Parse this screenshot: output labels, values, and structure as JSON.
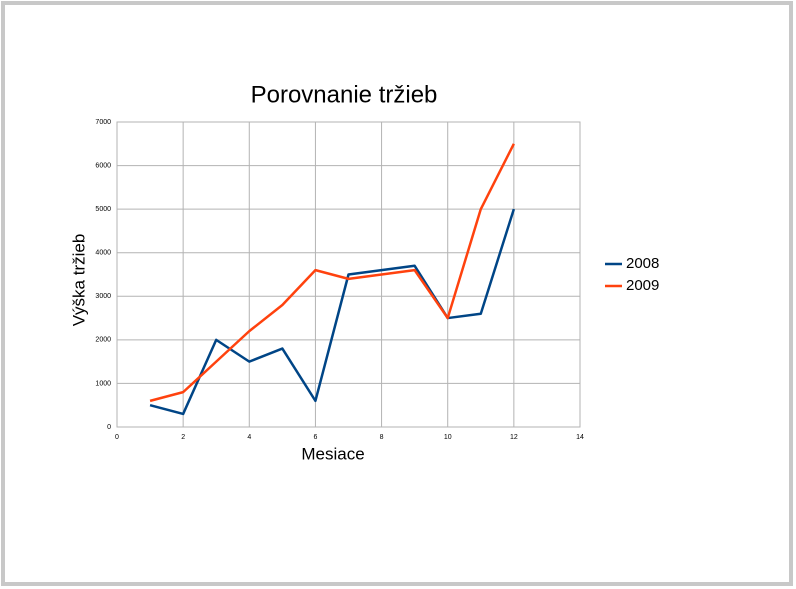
{
  "chart_data": {
    "type": "line",
    "title": "Porovnanie tržieb",
    "x_label": "Mesiace",
    "y_label": "Výška tržieb",
    "x": [
      1,
      2,
      3,
      4,
      5,
      6,
      7,
      8,
      9,
      10,
      11,
      12
    ],
    "series": [
      {
        "name": "2008",
        "color": "#004586",
        "values": [
          500,
          300,
          2000,
          1500,
          1800,
          600,
          3500,
          3600,
          3700,
          2500,
          2600,
          5000
        ]
      },
      {
        "name": "2009",
        "color": "#ff420e",
        "values": [
          600,
          800,
          1500,
          2200,
          2800,
          3600,
          3400,
          3500,
          3600,
          2500,
          5000,
          6500
        ]
      }
    ],
    "xlim": [
      0,
      14
    ],
    "xticks": [
      0,
      2,
      4,
      6,
      8,
      10,
      12,
      14
    ],
    "ylim": [
      0,
      7000
    ],
    "yticks": [
      0,
      1000,
      2000,
      3000,
      4000,
      5000,
      6000,
      7000
    ],
    "grid": true,
    "legend": "right"
  }
}
